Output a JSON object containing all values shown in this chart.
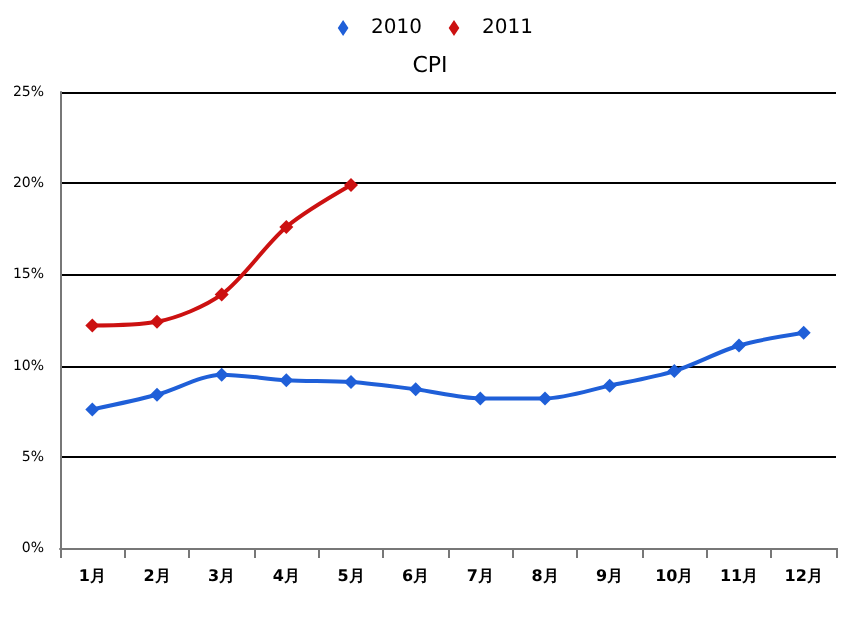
{
  "chart_data": {
    "type": "line",
    "title": "CPI",
    "categories": [
      "1月",
      "2月",
      "3月",
      "4月",
      "5月",
      "6月",
      "7月",
      "8月",
      "9月",
      "10月",
      "11月",
      "12月"
    ],
    "series": [
      {
        "name": "2010",
        "color": "#1f5fd8",
        "values": [
          7.6,
          8.4,
          9.5,
          9.2,
          9.1,
          8.7,
          8.2,
          8.2,
          8.9,
          9.7,
          11.1,
          11.8
        ]
      },
      {
        "name": "2011",
        "color": "#cc1111",
        "values": [
          12.2,
          12.4,
          13.9,
          17.6,
          19.9,
          null,
          null,
          null,
          null,
          null,
          null,
          null
        ]
      }
    ],
    "ylim": [
      0,
      25
    ],
    "yticks": [
      {
        "value": 0,
        "label": "0%"
      },
      {
        "value": 5,
        "label": "5%"
      },
      {
        "value": 10,
        "label": "10%"
      },
      {
        "value": 15,
        "label": "15%"
      },
      {
        "value": 20,
        "label": "20%"
      },
      {
        "value": 25,
        "label": "25%"
      }
    ],
    "grid": "y",
    "legend": "top",
    "marker": "diamond",
    "line_style": "solid"
  }
}
